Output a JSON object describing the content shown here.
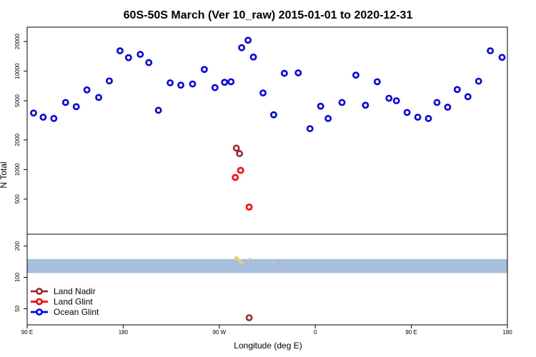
{
  "chart_data": {
    "type": "scatter",
    "title": "60S-50S March (Ver 10_raw)   2015-01-01 to 2020-12-31",
    "xlabel": "Longitude (deg E)",
    "ylabel": "N Total",
    "x_ticks": [
      {
        "value": 90,
        "label": "90 E"
      },
      {
        "value": 180,
        "label": "180"
      },
      {
        "value": 270,
        "label": "90 W"
      },
      {
        "value": 360,
        "label": "0"
      },
      {
        "value": 450,
        "label": "90 E"
      },
      {
        "value": 540,
        "label": "180"
      }
    ],
    "xlim": [
      90,
      540
    ],
    "main_panel": {
      "yscale": "log",
      "ylim": [
        220,
        28000
      ],
      "y_ticks": [
        500,
        1000,
        2000,
        5000,
        10000,
        20000
      ],
      "series": [
        {
          "name": "Ocean Glint",
          "color": "#0000ee",
          "x": [
            96,
            105,
            115,
            126,
            136,
            146,
            157,
            167,
            177,
            185,
            196,
            204,
            213,
            224,
            234,
            245,
            256,
            266,
            275,
            281,
            291,
            297,
            302,
            311,
            321,
            331,
            344,
            355,
            365,
            372,
            385,
            398,
            407,
            418,
            429,
            436,
            446,
            456,
            466,
            474,
            484,
            493,
            503,
            513,
            524,
            535
          ],
          "y": [
            3750,
            3400,
            3300,
            4800,
            4350,
            6450,
            5400,
            7950,
            16100,
            13700,
            14800,
            12200,
            4000,
            7600,
            7200,
            7400,
            10400,
            6800,
            7700,
            7800,
            17300,
            20600,
            13900,
            6000,
            3600,
            9500,
            9600,
            2600,
            4400,
            3300,
            4800,
            9100,
            4500,
            7800,
            5300,
            5000,
            3800,
            3400,
            3300,
            4800,
            4300,
            6500,
            5500,
            7900,
            16100,
            13800
          ]
        },
        {
          "name": "Land Nadir",
          "color": "#9c2a2a",
          "x": [
            286,
            289
          ],
          "y": [
            1650,
            1450
          ]
        },
        {
          "name": "Land Glint",
          "color": "#ff0000",
          "x": [
            285,
            290,
            298
          ],
          "y": [
            830,
            980,
            415
          ]
        }
      ]
    },
    "lower_panel": {
      "yscale": "log",
      "ylim": [
        35,
        260
      ],
      "y_ticks": [
        50,
        100,
        200
      ],
      "band": {
        "from": 110,
        "to": 150,
        "color": "#a7bedd"
      },
      "land_patch_color": "#f0d070",
      "series": [
        {
          "name": "Land Nadir",
          "color": "#9c2a2a",
          "x": [
            298
          ],
          "y": [
            41
          ]
        }
      ]
    },
    "legend": {
      "position": "bottom-left",
      "entries": [
        {
          "label": "Land Nadir",
          "color": "#9c2a2a"
        },
        {
          "label": "Land Glint",
          "color": "#ff0000"
        },
        {
          "label": "Ocean Glint",
          "color": "#0000ee"
        }
      ]
    }
  }
}
